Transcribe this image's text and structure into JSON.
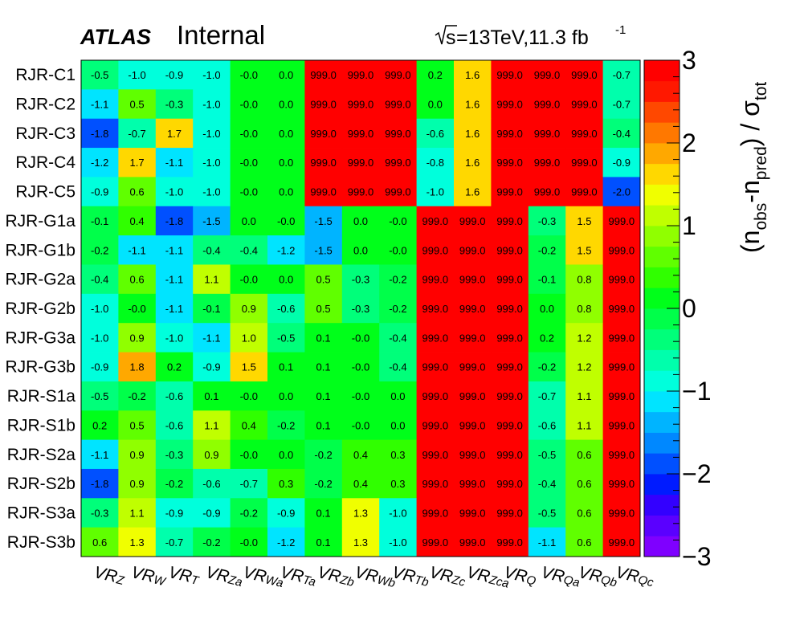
{
  "header": {
    "experiment": "ATLAS",
    "status": "Internal",
    "sqrt_s": "s",
    "energy_lumi": "=13TeV,11.3 fb",
    "lumi_exp": "-1"
  },
  "colorbar": {
    "title_parts": [
      "(n",
      "obs",
      "-n",
      "pred",
      ") / σ",
      "tot"
    ],
    "min": -3,
    "max": 3,
    "ticks": [
      3,
      2,
      1,
      0,
      -1,
      -2,
      -3
    ],
    "tick_labels": [
      "3",
      "2",
      "1",
      "0",
      "−1",
      "−2",
      "−3"
    ],
    "palette": [
      "#7f00ff",
      "#5a00ff",
      "#3300ff",
      "#001bff",
      "#0050ff",
      "#0088ff",
      "#00b4ff",
      "#00e4ff",
      "#00ffdc",
      "#00ffac",
      "#00ff7a",
      "#00ff4a",
      "#00ff1a",
      "#30ff00",
      "#60ff00",
      "#90ff00",
      "#c0ff00",
      "#f0ff00",
      "#ffd800",
      "#ffa800",
      "#ff7800",
      "#ff4800",
      "#ff1800",
      "#ff0000"
    ]
  },
  "chart_data": {
    "type": "heatmap",
    "title": "",
    "rows": [
      "RJR-C1",
      "RJR-C2",
      "RJR-C3",
      "RJR-C4",
      "RJR-C5",
      "RJR-G1a",
      "RJR-G1b",
      "RJR-G2a",
      "RJR-G2b",
      "RJR-G3a",
      "RJR-G3b",
      "RJR-S1a",
      "RJR-S1b",
      "RJR-S2a",
      "RJR-S2b",
      "RJR-S3a",
      "RJR-S3b"
    ],
    "columns": [
      {
        "main": "VR",
        "sub": "Z"
      },
      {
        "main": "VR",
        "sub": "W"
      },
      {
        "main": "VR",
        "sub": "T"
      },
      {
        "main": "VR",
        "sub": "Za"
      },
      {
        "main": "VR",
        "sub": "Wa"
      },
      {
        "main": "VR",
        "sub": "Ta"
      },
      {
        "main": "VR",
        "sub": "Zb"
      },
      {
        "main": "VR",
        "sub": "Wb"
      },
      {
        "main": "VR",
        "sub": "Tb"
      },
      {
        "main": "VR",
        "sub": "Zc"
      },
      {
        "main": "VR",
        "sub": "Zca"
      },
      {
        "main": "VR",
        "sub": "Q"
      },
      {
        "main": "VR",
        "sub": "Qa"
      },
      {
        "main": "VR",
        "sub": "Qb"
      },
      {
        "main": "VR",
        "sub": "Qc"
      }
    ],
    "zrange": [
      -3,
      3
    ],
    "values": [
      [
        -0.5,
        -1.0,
        -0.9,
        -1.0,
        -0.0,
        0.0,
        999.0,
        999.0,
        999.0,
        0.2,
        1.6,
        999.0,
        999.0,
        999.0,
        -0.7
      ],
      [
        -1.1,
        0.5,
        -0.3,
        -1.0,
        -0.0,
        0.0,
        999.0,
        999.0,
        999.0,
        0.0,
        1.6,
        999.0,
        999.0,
        999.0,
        -0.7
      ],
      [
        -1.8,
        -0.7,
        1.7,
        -1.0,
        -0.0,
        0.0,
        999.0,
        999.0,
        999.0,
        -0.6,
        1.6,
        999.0,
        999.0,
        999.0,
        -0.4
      ],
      [
        -1.2,
        1.7,
        -1.1,
        -1.0,
        -0.0,
        0.0,
        999.0,
        999.0,
        999.0,
        -0.8,
        1.6,
        999.0,
        999.0,
        999.0,
        -0.9
      ],
      [
        -0.9,
        0.6,
        -1.0,
        -1.0,
        -0.0,
        0.0,
        999.0,
        999.0,
        999.0,
        -1.0,
        1.6,
        999.0,
        999.0,
        999.0,
        -2.0
      ],
      [
        -0.1,
        0.4,
        -1.8,
        -1.5,
        0.0,
        -0.0,
        -1.5,
        0.0,
        -0.0,
        999.0,
        999.0,
        999.0,
        -0.3,
        1.5,
        999.0
      ],
      [
        -0.2,
        -1.1,
        -1.1,
        -0.4,
        -0.4,
        -1.2,
        -1.5,
        0.0,
        -0.0,
        999.0,
        999.0,
        999.0,
        -0.2,
        1.5,
        999.0
      ],
      [
        -0.4,
        0.6,
        -1.1,
        1.1,
        -0.0,
        0.0,
        0.5,
        -0.3,
        -0.2,
        999.0,
        999.0,
        999.0,
        -0.1,
        0.8,
        999.0
      ],
      [
        -1.0,
        -0.0,
        -1.1,
        -0.1,
        0.9,
        -0.6,
        0.5,
        -0.3,
        -0.2,
        999.0,
        999.0,
        999.0,
        0.0,
        0.8,
        999.0
      ],
      [
        -1.0,
        0.9,
        -1.0,
        -1.1,
        1.0,
        -0.5,
        0.1,
        -0.0,
        -0.4,
        999.0,
        999.0,
        999.0,
        0.2,
        1.2,
        999.0
      ],
      [
        -0.9,
        1.8,
        0.2,
        -0.9,
        1.5,
        0.1,
        0.1,
        -0.0,
        -0.4,
        999.0,
        999.0,
        999.0,
        -0.2,
        1.2,
        999.0
      ],
      [
        -0.5,
        -0.2,
        -0.6,
        0.1,
        -0.0,
        0.0,
        0.1,
        -0.0,
        0.0,
        999.0,
        999.0,
        999.0,
        -0.7,
        1.1,
        999.0
      ],
      [
        0.2,
        0.5,
        -0.6,
        1.1,
        0.4,
        -0.2,
        0.1,
        -0.0,
        0.0,
        999.0,
        999.0,
        999.0,
        -0.6,
        1.1,
        999.0
      ],
      [
        -1.1,
        0.9,
        -0.3,
        0.9,
        -0.0,
        0.0,
        -0.2,
        0.4,
        0.3,
        999.0,
        999.0,
        999.0,
        -0.5,
        0.6,
        999.0
      ],
      [
        -1.8,
        0.9,
        -0.2,
        -0.6,
        -0.7,
        0.3,
        -0.2,
        0.4,
        0.3,
        999.0,
        999.0,
        999.0,
        -0.4,
        0.6,
        999.0
      ],
      [
        -0.3,
        1.1,
        -0.9,
        -0.9,
        -0.2,
        -0.9,
        0.1,
        1.3,
        -1.0,
        999.0,
        999.0,
        999.0,
        -0.5,
        0.6,
        999.0
      ],
      [
        0.6,
        1.3,
        -0.7,
        -0.2,
        -0.0,
        -1.2,
        0.1,
        1.3,
        -1.0,
        999.0,
        999.0,
        999.0,
        -1.1,
        0.6,
        999.0
      ]
    ],
    "value_labels": [
      [
        "-0.5",
        "-1.0",
        "-0.9",
        "-1.0",
        "-0.0",
        "0.0",
        "999.0",
        "999.0",
        "999.0",
        "0.2",
        "1.6",
        "999.0",
        "999.0",
        "999.0",
        "-0.7"
      ],
      [
        "-1.1",
        "0.5",
        "-0.3",
        "-1.0",
        "-0.0",
        "0.0",
        "999.0",
        "999.0",
        "999.0",
        "0.0",
        "1.6",
        "999.0",
        "999.0",
        "999.0",
        "-0.7"
      ],
      [
        "-1.8",
        "-0.7",
        "1.7",
        "-1.0",
        "-0.0",
        "0.0",
        "999.0",
        "999.0",
        "999.0",
        "-0.6",
        "1.6",
        "999.0",
        "999.0",
        "999.0",
        "-0.4"
      ],
      [
        "-1.2",
        "1.7",
        "-1.1",
        "-1.0",
        "-0.0",
        "0.0",
        "999.0",
        "999.0",
        "999.0",
        "-0.8",
        "1.6",
        "999.0",
        "999.0",
        "999.0",
        "-0.9"
      ],
      [
        "-0.9",
        "0.6",
        "-1.0",
        "-1.0",
        "-0.0",
        "0.0",
        "999.0",
        "999.0",
        "999.0",
        "-1.0",
        "1.6",
        "999.0",
        "999.0",
        "999.0",
        "-2.0"
      ],
      [
        "-0.1",
        "0.4",
        "-1.8",
        "-1.5",
        "0.0",
        "-0.0",
        "-1.5",
        "0.0",
        "-0.0",
        "999.0",
        "999.0",
        "999.0",
        "-0.3",
        "1.5",
        "999.0"
      ],
      [
        "-0.2",
        "-1.1",
        "-1.1",
        "-0.4",
        "-0.4",
        "-1.2",
        "-1.5",
        "0.0",
        "-0.0",
        "999.0",
        "999.0",
        "999.0",
        "-0.2",
        "1.5",
        "999.0"
      ],
      [
        "-0.4",
        "0.6",
        "-1.1",
        "1.1",
        "-0.0",
        "0.0",
        "0.5",
        "-0.3",
        "-0.2",
        "999.0",
        "999.0",
        "999.0",
        "-0.1",
        "0.8",
        "999.0"
      ],
      [
        "-1.0",
        "-0.0",
        "-1.1",
        "-0.1",
        "0.9",
        "-0.6",
        "0.5",
        "-0.3",
        "-0.2",
        "999.0",
        "999.0",
        "999.0",
        "0.0",
        "0.8",
        "999.0"
      ],
      [
        "-1.0",
        "0.9",
        "-1.0",
        "-1.1",
        "1.0",
        "-0.5",
        "0.1",
        "-0.0",
        "-0.4",
        "999.0",
        "999.0",
        "999.0",
        "0.2",
        "1.2",
        "999.0"
      ],
      [
        "-0.9",
        "1.8",
        "0.2",
        "-0.9",
        "1.5",
        "0.1",
        "0.1",
        "-0.0",
        "-0.4",
        "999.0",
        "999.0",
        "999.0",
        "-0.2",
        "1.2",
        "999.0"
      ],
      [
        "-0.5",
        "-0.2",
        "-0.6",
        "0.1",
        "-0.0",
        "0.0",
        "0.1",
        "-0.0",
        "0.0",
        "999.0",
        "999.0",
        "999.0",
        "-0.7",
        "1.1",
        "999.0"
      ],
      [
        "0.2",
        "0.5",
        "-0.6",
        "1.1",
        "0.4",
        "-0.2",
        "0.1",
        "-0.0",
        "0.0",
        "999.0",
        "999.0",
        "999.0",
        "-0.6",
        "1.1",
        "999.0"
      ],
      [
        "-1.1",
        "0.9",
        "-0.3",
        "0.9",
        "-0.0",
        "0.0",
        "-0.2",
        "0.4",
        "0.3",
        "999.0",
        "999.0",
        "999.0",
        "-0.5",
        "0.6",
        "999.0"
      ],
      [
        "-1.8",
        "0.9",
        "-0.2",
        "-0.6",
        "-0.7",
        "0.3",
        "-0.2",
        "0.4",
        "0.3",
        "999.0",
        "999.0",
        "999.0",
        "-0.4",
        "0.6",
        "999.0"
      ],
      [
        "-0.3",
        "1.1",
        "-0.9",
        "-0.9",
        "-0.2",
        "-0.9",
        "0.1",
        "1.3",
        "-1.0",
        "999.0",
        "999.0",
        "999.0",
        "-0.5",
        "0.6",
        "999.0"
      ],
      [
        "0.6",
        "1.3",
        "-0.7",
        "-0.2",
        "-0.0",
        "-1.2",
        "0.1",
        "1.3",
        "-1.0",
        "999.0",
        "999.0",
        "999.0",
        "-1.1",
        "0.6",
        "999.0"
      ]
    ]
  }
}
